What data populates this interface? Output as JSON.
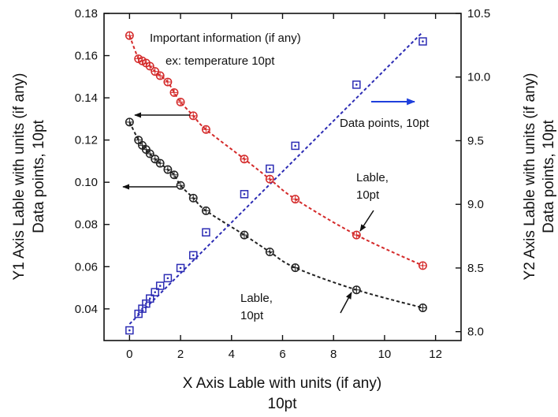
{
  "chart_data": {
    "type": "scatter",
    "title": "",
    "xlabel": "X Axis Lable with units (if any)",
    "xlabel_line2": "10pt",
    "ylabel": "Y1 Axis Lable with units (if any)",
    "ylabel_line2": "Data points, 10pt",
    "y2label": "Y2 Axis Lable with units (if any)",
    "y2label_line2": "Data points, 10pt",
    "xlim": [
      -1,
      13
    ],
    "ylim": [
      0.025,
      0.18
    ],
    "y2lim": [
      7.93,
      10.5
    ],
    "x_ticks": [
      0,
      2,
      4,
      6,
      8,
      10,
      12
    ],
    "y_ticks": [
      0.04,
      0.06,
      0.08,
      0.1,
      0.12,
      0.14,
      0.16,
      0.18
    ],
    "y_tick_labels": [
      "0.04",
      "0.06",
      "0.08",
      "0.10",
      "0.12",
      "0.14",
      "0.16",
      "0.18"
    ],
    "y2_ticks": [
      8.0,
      8.5,
      9.0,
      9.5,
      10.0,
      10.5
    ],
    "y2_tick_labels": [
      "8.0",
      "8.5",
      "9.0",
      "9.5",
      "10.0",
      "10.5"
    ],
    "grid": false,
    "series": [
      {
        "axis": "y1",
        "color": "#d42a2a",
        "marker": "circle-plus",
        "line": "dashed-fit",
        "x": [
          0,
          0.35,
          0.5,
          0.65,
          0.8,
          1.0,
          1.2,
          1.5,
          1.75,
          2.0,
          2.5,
          3.0,
          4.5,
          5.5,
          6.5,
          8.9,
          11.5
        ],
        "y": [
          0.1695,
          0.1585,
          0.1575,
          0.1565,
          0.155,
          0.1525,
          0.1505,
          0.1475,
          0.1425,
          0.138,
          0.1315,
          0.125,
          0.111,
          0.1015,
          0.092,
          0.075,
          0.0605
        ]
      },
      {
        "axis": "y1",
        "color": "#222222",
        "marker": "circle-plus",
        "line": "dashed-fit",
        "x": [
          0,
          0.35,
          0.5,
          0.65,
          0.8,
          1.0,
          1.2,
          1.5,
          1.75,
          2.0,
          2.5,
          3.0,
          4.5,
          5.5,
          6.5,
          8.9,
          11.5
        ],
        "y": [
          0.1285,
          0.12,
          0.1175,
          0.1155,
          0.1135,
          0.111,
          0.109,
          0.106,
          0.1035,
          0.0985,
          0.0925,
          0.0865,
          0.075,
          0.067,
          0.0595,
          0.049,
          0.0405
        ]
      },
      {
        "axis": "y2",
        "color": "#2c2cb4",
        "marker": "square-dot",
        "line": "dashed-fit",
        "x": [
          0,
          0.35,
          0.5,
          0.65,
          0.8,
          1.0,
          1.2,
          1.5,
          2.0,
          2.5,
          3.0,
          4.5,
          5.5,
          6.5,
          8.9,
          11.5
        ],
        "y": [
          8.01,
          8.14,
          8.18,
          8.22,
          8.26,
          8.31,
          8.36,
          8.42,
          8.5,
          8.6,
          8.78,
          9.08,
          9.28,
          9.46,
          9.94,
          10.28
        ]
      }
    ],
    "annotations": [
      "Important information (if any)",
      "ex: temperature 10pt",
      "Data points, 10pt",
      "Lable,",
      "10pt",
      "Lable,",
      "10pt"
    ]
  }
}
